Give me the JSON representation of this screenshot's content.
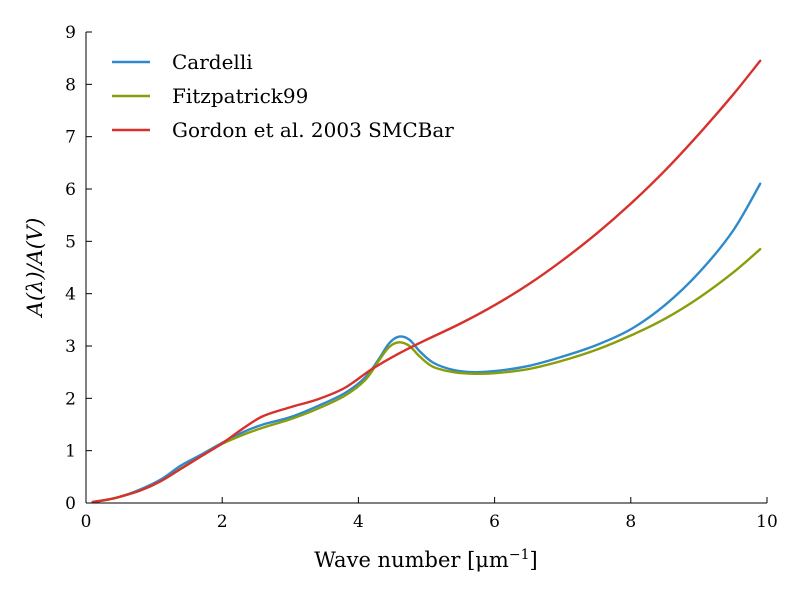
{
  "chart_data": {
    "type": "line",
    "xlabel": "Wave number [μm",
    "xlabel_sup": "−1",
    "xlabel_tail": "]",
    "ylabel": "A(λ)/A(V)",
    "xlim": [
      0,
      10
    ],
    "ylim": [
      0,
      9
    ],
    "xticks": [
      "0",
      "2",
      "4",
      "6",
      "8",
      "10"
    ],
    "yticks": [
      "0",
      "1",
      "2",
      "3",
      "4",
      "5",
      "6",
      "7",
      "8",
      "9"
    ],
    "grid": false,
    "legend_position": "top-left",
    "series": [
      {
        "name": "Cardelli",
        "color": "#2f8acb",
        "x": [
          0.1,
          0.3,
          0.5,
          0.8,
          1.1,
          1.4,
          1.7,
          2.0,
          2.3,
          2.6,
          3.0,
          3.4,
          3.8,
          4.1,
          4.3,
          4.45,
          4.6,
          4.75,
          4.9,
          5.1,
          5.4,
          5.7,
          6.0,
          6.5,
          7.0,
          7.5,
          8.0,
          8.5,
          9.0,
          9.5,
          9.9
        ],
        "y": [
          0.02,
          0.06,
          0.12,
          0.26,
          0.45,
          0.72,
          0.93,
          1.15,
          1.35,
          1.5,
          1.64,
          1.85,
          2.1,
          2.4,
          2.75,
          3.05,
          3.18,
          3.12,
          2.9,
          2.68,
          2.54,
          2.5,
          2.52,
          2.62,
          2.8,
          3.02,
          3.32,
          3.78,
          4.4,
          5.2,
          6.1
        ]
      },
      {
        "name": "Fitzpatrick99",
        "color": "#8a9e0c",
        "x": [
          0.1,
          0.3,
          0.5,
          0.8,
          1.1,
          1.4,
          1.7,
          2.0,
          2.3,
          2.6,
          3.0,
          3.4,
          3.8,
          4.1,
          4.3,
          4.45,
          4.6,
          4.75,
          4.9,
          5.1,
          5.4,
          5.7,
          6.0,
          6.5,
          7.0,
          7.5,
          8.0,
          8.5,
          9.0,
          9.5,
          9.9
        ],
        "y": [
          0.02,
          0.06,
          0.12,
          0.24,
          0.42,
          0.66,
          0.9,
          1.13,
          1.3,
          1.44,
          1.6,
          1.8,
          2.05,
          2.35,
          2.72,
          2.98,
          3.07,
          3.0,
          2.8,
          2.6,
          2.5,
          2.47,
          2.48,
          2.56,
          2.72,
          2.93,
          3.2,
          3.52,
          3.92,
          4.4,
          4.85
        ]
      },
      {
        "name": "Gordon et al. 2003 SMCBar",
        "color": "#d7312c",
        "x": [
          0.1,
          0.3,
          0.5,
          0.8,
          1.1,
          1.4,
          1.7,
          2.0,
          2.3,
          2.6,
          3.0,
          3.4,
          3.8,
          4.2,
          4.6,
          5.0,
          5.5,
          6.0,
          6.5,
          7.0,
          7.5,
          8.0,
          8.5,
          9.0,
          9.5,
          9.9
        ],
        "y": [
          0.02,
          0.06,
          0.12,
          0.24,
          0.42,
          0.66,
          0.9,
          1.14,
          1.42,
          1.66,
          1.83,
          1.98,
          2.2,
          2.56,
          2.86,
          3.12,
          3.43,
          3.78,
          4.18,
          4.64,
          5.15,
          5.72,
          6.35,
          7.05,
          7.8,
          8.45
        ]
      }
    ]
  }
}
